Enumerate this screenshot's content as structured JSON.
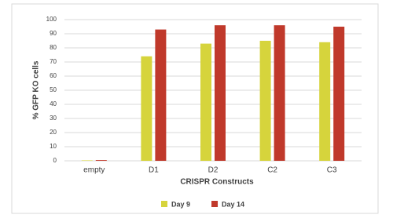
{
  "chart_data": {
    "type": "bar",
    "x_label": "CRISPR Constructs",
    "y_label": "% GFP KO cells",
    "categories": [
      "empty",
      "D1",
      "D2",
      "C2",
      "C3"
    ],
    "series": [
      {
        "name": "Day 9",
        "color": "#d6d43c",
        "values": [
          0.3,
          74,
          83,
          85,
          84
        ]
      },
      {
        "name": "Day 14",
        "color": "#c0392b",
        "values": [
          0.5,
          93,
          96,
          96,
          95
        ]
      }
    ],
    "ylim": [
      0,
      100
    ],
    "yticks": [
      0,
      10,
      20,
      30,
      40,
      50,
      60,
      70,
      80,
      90,
      100
    ],
    "grid": true,
    "legend": "bottom"
  }
}
